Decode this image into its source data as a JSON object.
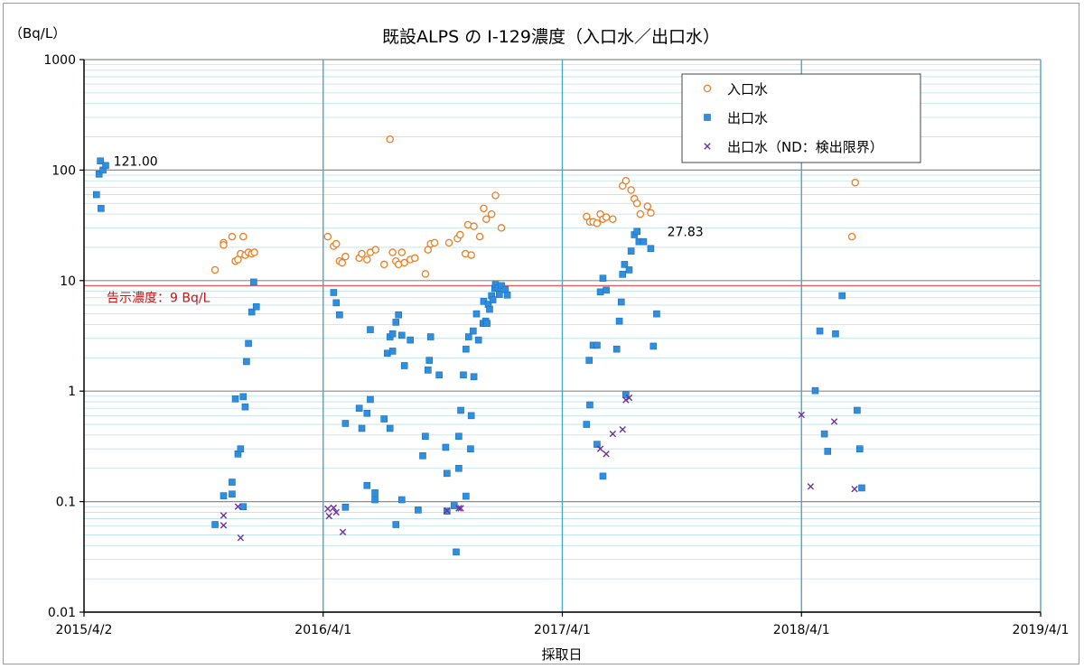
{
  "chart_data": {
    "type": "scatter",
    "title": "既設ALPS の I-129濃度（入口水／出口水）",
    "ylabel": "（Bq/L）",
    "xlabel": "採取日",
    "yscale": "log",
    "ylim": [
      0.01,
      1000
    ],
    "xlim": [
      "2015-04-02",
      "2019-04-01"
    ],
    "y_ticks": [
      "1000",
      "100",
      "10",
      "1",
      "0.1",
      "0.01"
    ],
    "x_ticks": [
      {
        "date": "2015-04-02",
        "label": "2015/4/2"
      },
      {
        "date": "2016-04-01",
        "label": "2016/4/1"
      },
      {
        "date": "2017-04-01",
        "label": "2017/4/1"
      },
      {
        "date": "2018-04-01",
        "label": "2018/4/1"
      },
      {
        "date": "2019-04-01",
        "label": "2019/4/1"
      }
    ],
    "legend_position": "top-right",
    "reference_line": {
      "value": 9,
      "label": "告示濃度：9 Bq/L",
      "color": "#e06060"
    },
    "annotations": [
      {
        "date": "2015-05-06",
        "value": 121.0,
        "label": "121.00"
      },
      {
        "date": "2017-08-28",
        "value": 27.83,
        "label": "27.83"
      }
    ],
    "series": [
      {
        "name": "入口水",
        "marker": "circle",
        "color": "#ee7d22",
        "points": [
          [
            "2015-10-19",
            12.5
          ],
          [
            "2015-11-01",
            22
          ],
          [
            "2015-11-01",
            21
          ],
          [
            "2015-11-14",
            25
          ],
          [
            "2015-11-19",
            15
          ],
          [
            "2015-11-23",
            15.5
          ],
          [
            "2015-11-27",
            17.5
          ],
          [
            "2015-12-01",
            25
          ],
          [
            "2015-12-04",
            17
          ],
          [
            "2015-12-09",
            18
          ],
          [
            "2015-12-14",
            17.5
          ],
          [
            "2015-12-18",
            18
          ],
          [
            "2016-04-08",
            25
          ],
          [
            "2016-04-17",
            20.5
          ],
          [
            "2016-04-21",
            21.5
          ],
          [
            "2016-04-26",
            15
          ],
          [
            "2016-04-30",
            14.5
          ],
          [
            "2016-05-05",
            16.5
          ],
          [
            "2016-05-26",
            16
          ],
          [
            "2016-05-30",
            17.5
          ],
          [
            "2016-06-07",
            15.5
          ],
          [
            "2016-06-12",
            18
          ],
          [
            "2016-06-20",
            19
          ],
          [
            "2016-07-03",
            14
          ],
          [
            "2016-07-12",
            190
          ],
          [
            "2016-07-16",
            18
          ],
          [
            "2016-07-21",
            15
          ],
          [
            "2016-07-25",
            14
          ],
          [
            "2016-07-30",
            18
          ],
          [
            "2016-08-03",
            14.5
          ],
          [
            "2016-08-12",
            15.5
          ],
          [
            "2016-08-19",
            16
          ],
          [
            "2016-09-04",
            11.5
          ],
          [
            "2016-09-08",
            19
          ],
          [
            "2016-09-12",
            21.5
          ],
          [
            "2016-09-18",
            22
          ],
          [
            "2016-10-10",
            22
          ],
          [
            "2016-10-23",
            24
          ],
          [
            "2016-10-27",
            26
          ],
          [
            "2016-11-04",
            17.5
          ],
          [
            "2016-11-08",
            32
          ],
          [
            "2016-11-13",
            17
          ],
          [
            "2016-11-17",
            31
          ],
          [
            "2016-11-26",
            25
          ],
          [
            "2016-12-02",
            45
          ],
          [
            "2016-12-06",
            36
          ],
          [
            "2016-12-14",
            40
          ],
          [
            "2016-12-20",
            59
          ],
          [
            "2016-12-29",
            30
          ],
          [
            "2017-05-08",
            38
          ],
          [
            "2017-05-13",
            34
          ],
          [
            "2017-05-18",
            34
          ],
          [
            "2017-05-24",
            33
          ],
          [
            "2017-05-29",
            40
          ],
          [
            "2017-06-02",
            36
          ],
          [
            "2017-06-07",
            37.5
          ],
          [
            "2017-06-17",
            36
          ],
          [
            "2017-07-02",
            72
          ],
          [
            "2017-07-07",
            80
          ],
          [
            "2017-07-15",
            66
          ],
          [
            "2017-07-20",
            55
          ],
          [
            "2017-07-24",
            50
          ],
          [
            "2017-07-29",
            40
          ],
          [
            "2017-08-09",
            47
          ],
          [
            "2017-08-14",
            41
          ],
          [
            "2018-06-17",
            25
          ],
          [
            "2018-06-22",
            77
          ]
        ]
      },
      {
        "name": "出口水",
        "marker": "square",
        "color": "#2e8fe0",
        "points": [
          [
            "2015-04-21",
            60
          ],
          [
            "2015-04-25",
            92
          ],
          [
            "2015-04-27",
            121
          ],
          [
            "2015-04-28",
            45
          ],
          [
            "2015-05-01",
            100
          ],
          [
            "2015-05-05",
            110
          ],
          [
            "2015-10-19",
            0.062
          ],
          [
            "2015-11-01",
            0.113
          ],
          [
            "2015-11-14",
            0.117
          ],
          [
            "2015-11-14",
            0.15
          ],
          [
            "2015-11-19",
            0.85
          ],
          [
            "2015-11-23",
            0.27
          ],
          [
            "2015-11-27",
            0.3
          ],
          [
            "2015-12-01",
            0.09
          ],
          [
            "2015-12-01",
            0.89
          ],
          [
            "2015-12-04",
            0.72
          ],
          [
            "2015-12-06",
            1.85
          ],
          [
            "2015-12-09",
            2.7
          ],
          [
            "2015-12-14",
            5.2
          ],
          [
            "2015-12-17",
            9.7
          ],
          [
            "2015-12-21",
            5.8
          ],
          [
            "2016-04-17",
            7.8
          ],
          [
            "2016-04-21",
            6.3
          ],
          [
            "2016-04-26",
            4.9
          ],
          [
            "2016-05-05",
            0.51
          ],
          [
            "2016-05-05",
            0.089
          ],
          [
            "2016-05-26",
            0.7
          ],
          [
            "2016-05-30",
            0.46
          ],
          [
            "2016-06-07",
            0.63
          ],
          [
            "2016-06-07",
            0.14
          ],
          [
            "2016-06-12",
            0.84
          ],
          [
            "2016-06-12",
            3.6
          ],
          [
            "2016-06-19",
            0.104
          ],
          [
            "2016-06-19",
            0.12
          ],
          [
            "2016-07-03",
            0.56
          ],
          [
            "2016-07-08",
            2.2
          ],
          [
            "2016-07-12",
            0.46
          ],
          [
            "2016-07-12",
            3.1
          ],
          [
            "2016-07-16",
            2.3
          ],
          [
            "2016-07-16",
            3.3
          ],
          [
            "2016-07-21",
            4.2
          ],
          [
            "2016-07-21",
            0.062
          ],
          [
            "2016-07-25",
            4.9
          ],
          [
            "2016-07-30",
            3.2
          ],
          [
            "2016-07-30",
            0.104
          ],
          [
            "2016-08-03",
            1.7
          ],
          [
            "2016-08-12",
            2.9
          ],
          [
            "2016-08-24",
            0.084
          ],
          [
            "2016-08-31",
            0.26
          ],
          [
            "2016-09-04",
            0.39
          ],
          [
            "2016-09-08",
            1.55
          ],
          [
            "2016-09-10",
            1.9
          ],
          [
            "2016-09-12",
            3.1
          ],
          [
            "2016-09-25",
            1.4
          ],
          [
            "2016-10-05",
            0.31
          ],
          [
            "2016-10-07",
            0.18
          ],
          [
            "2016-10-07",
            0.082
          ],
          [
            "2016-10-18",
            0.092
          ],
          [
            "2016-10-21",
            0.035
          ],
          [
            "2016-10-25",
            0.2
          ],
          [
            "2016-10-25",
            0.39
          ],
          [
            "2016-10-28",
            0.67
          ],
          [
            "2016-11-01",
            1.4
          ],
          [
            "2016-11-05",
            2.4
          ],
          [
            "2016-11-05",
            0.112
          ],
          [
            "2016-11-09",
            3.1
          ],
          [
            "2016-11-12",
            0.3
          ],
          [
            "2016-11-13",
            0.6
          ],
          [
            "2016-11-16",
            3.5
          ],
          [
            "2016-11-17",
            1.35
          ],
          [
            "2016-11-21",
            5
          ],
          [
            "2016-11-24",
            2.9
          ],
          [
            "2016-12-01",
            4.1
          ],
          [
            "2016-12-02",
            6.5
          ],
          [
            "2016-12-05",
            4.3
          ],
          [
            "2016-12-07",
            4.1
          ],
          [
            "2016-12-09",
            6.1
          ],
          [
            "2016-12-11",
            5.5
          ],
          [
            "2016-12-14",
            7.3
          ],
          [
            "2016-12-16",
            6.7
          ],
          [
            "2016-12-19",
            8.5
          ],
          [
            "2016-12-20",
            9.2
          ],
          [
            "2016-12-24",
            8.6
          ],
          [
            "2016-12-26",
            7.5
          ],
          [
            "2016-12-29",
            9
          ],
          [
            "2017-01-04",
            8.3
          ],
          [
            "2017-01-07",
            7.4
          ],
          [
            "2017-05-08",
            0.5
          ],
          [
            "2017-05-12",
            1.9
          ],
          [
            "2017-05-13",
            0.75
          ],
          [
            "2017-05-18",
            2.6
          ],
          [
            "2017-05-24",
            2.6
          ],
          [
            "2017-05-24",
            0.33
          ],
          [
            "2017-05-29",
            7.9
          ],
          [
            "2017-06-02",
            10.5
          ],
          [
            "2017-06-02",
            0.17
          ],
          [
            "2017-06-07",
            8.2
          ],
          [
            "2017-06-23",
            2.4
          ],
          [
            "2017-06-27",
            4.3
          ],
          [
            "2017-06-30",
            6.4
          ],
          [
            "2017-07-02",
            11.4
          ],
          [
            "2017-07-05",
            14
          ],
          [
            "2017-07-07",
            0.93
          ],
          [
            "2017-07-12",
            12.5
          ],
          [
            "2017-07-15",
            18.5
          ],
          [
            "2017-07-20",
            26
          ],
          [
            "2017-07-24",
            27.83
          ],
          [
            "2017-07-27",
            22.5
          ],
          [
            "2017-08-03",
            22.5
          ],
          [
            "2017-08-14",
            19.5
          ],
          [
            "2017-08-18",
            2.55
          ],
          [
            "2017-08-23",
            5
          ],
          [
            "2018-04-22",
            1.01
          ],
          [
            "2018-04-29",
            3.5
          ],
          [
            "2018-05-06",
            0.41
          ],
          [
            "2018-05-11",
            0.285
          ],
          [
            "2018-05-23",
            3.3
          ],
          [
            "2018-06-02",
            7.3
          ],
          [
            "2018-06-25",
            0.67
          ],
          [
            "2018-06-29",
            0.3
          ],
          [
            "2018-07-02",
            0.133
          ]
        ]
      },
      {
        "name": "出口水（ND：検出限界）",
        "marker": "x",
        "color": "#7030a0",
        "points": [
          [
            "2015-11-01",
            0.061
          ],
          [
            "2015-11-01",
            0.075
          ],
          [
            "2015-11-23",
            0.09
          ],
          [
            "2015-11-27",
            0.047
          ],
          [
            "2016-04-08",
            0.086
          ],
          [
            "2016-04-10",
            0.074
          ],
          [
            "2016-04-17",
            0.088
          ],
          [
            "2016-04-21",
            0.08
          ],
          [
            "2016-05-01",
            0.053
          ],
          [
            "2016-10-07",
            0.083
          ],
          [
            "2016-10-25",
            0.087
          ],
          [
            "2016-10-28",
            0.087
          ],
          [
            "2017-05-29",
            0.3
          ],
          [
            "2017-06-07",
            0.27
          ],
          [
            "2017-06-17",
            0.41
          ],
          [
            "2017-07-02",
            0.45
          ],
          [
            "2017-07-07",
            0.83
          ],
          [
            "2017-07-12",
            0.87
          ],
          [
            "2018-04-01",
            0.61
          ],
          [
            "2018-04-15",
            0.137
          ],
          [
            "2018-05-21",
            0.53
          ],
          [
            "2018-06-21",
            0.13
          ]
        ]
      }
    ]
  }
}
